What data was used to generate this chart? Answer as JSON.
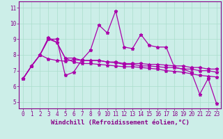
{
  "xlabel": "Windchill (Refroidissement éolien,°C)",
  "bg_color": "#cceee8",
  "line_color": "#aa00aa",
  "xlim": [
    -0.5,
    23.5
  ],
  "ylim": [
    4.6,
    11.4
  ],
  "xticks": [
    0,
    1,
    2,
    3,
    4,
    5,
    6,
    7,
    8,
    9,
    10,
    11,
    12,
    13,
    14,
    15,
    16,
    17,
    18,
    19,
    20,
    21,
    22,
    23
  ],
  "yticks": [
    5,
    6,
    7,
    8,
    9,
    10,
    11
  ],
  "series": [
    [
      6.5,
      7.3,
      8.0,
      9.0,
      9.0,
      6.7,
      6.9,
      7.7,
      8.3,
      9.9,
      9.4,
      10.8,
      8.5,
      8.4,
      9.3,
      8.6,
      8.5,
      8.5,
      7.2,
      7.1,
      6.9,
      5.5,
      6.5,
      4.9
    ],
    [
      6.5,
      7.3,
      8.0,
      9.1,
      8.8,
      7.8,
      7.8,
      7.65,
      7.65,
      7.65,
      7.55,
      7.55,
      7.45,
      7.45,
      7.45,
      7.4,
      7.4,
      7.35,
      7.3,
      7.3,
      7.2,
      7.2,
      7.1,
      7.1
    ],
    [
      6.5,
      7.3,
      8.0,
      7.75,
      7.65,
      7.6,
      7.7,
      7.65,
      7.65,
      7.65,
      7.55,
      7.5,
      7.4,
      7.4,
      7.3,
      7.3,
      7.25,
      7.2,
      7.2,
      7.1,
      7.1,
      7.0,
      7.0,
      6.9
    ],
    [
      6.5,
      7.3,
      8.0,
      9.0,
      8.8,
      7.8,
      7.55,
      7.45,
      7.45,
      7.4,
      7.35,
      7.3,
      7.25,
      7.25,
      7.2,
      7.15,
      7.1,
      7.0,
      6.95,
      6.9,
      6.8,
      6.7,
      6.65,
      6.6
    ]
  ],
  "marker": "*",
  "markersize": 3.5,
  "linewidth": 0.9,
  "xlabel_fontsize": 6.5,
  "tick_fontsize": 5.5,
  "grid_color": "#aaddcc",
  "spine_color": "#880088",
  "label_color": "#880088",
  "tick_color": "#880088"
}
